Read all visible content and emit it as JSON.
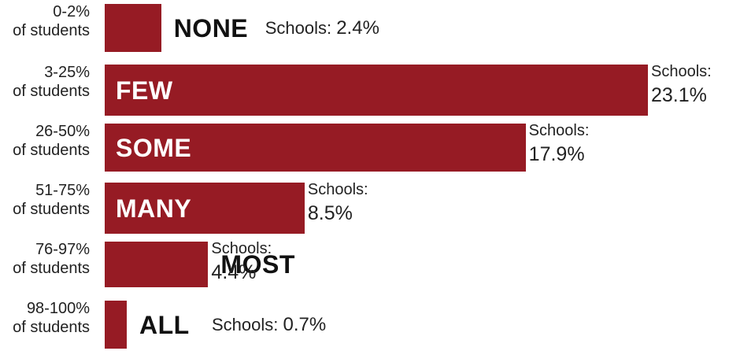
{
  "colors": {
    "bar": "#961b24"
  },
  "chart_data": {
    "type": "bar",
    "orientation": "horizontal",
    "xlim": [
      0,
      23.1
    ],
    "rows": [
      {
        "range": "0-2%",
        "unit": "of students",
        "category": "NONE",
        "key": "Schools:",
        "label": "2.4%",
        "value": 2.4
      },
      {
        "range": "3-25%",
        "unit": "of students",
        "category": "FEW",
        "key": "Schools:",
        "label": "23.1%",
        "value": 23.1
      },
      {
        "range": "26-50%",
        "unit": "of students",
        "category": "SOME",
        "key": "Schools:",
        "label": "17.9%",
        "value": 17.9
      },
      {
        "range": "51-75%",
        "unit": "of students",
        "category": "MANY",
        "key": "Schools:",
        "label": "8.5%",
        "value": 8.5
      },
      {
        "range": "76-97%",
        "unit": "of students",
        "category": "MOST",
        "key": "Schools:",
        "label": "4.4%",
        "value": 4.4
      },
      {
        "range": "98-100%",
        "unit": "of students",
        "category": "ALL",
        "key": "Schools:",
        "label": "0.7%",
        "value": 0.7
      }
    ]
  }
}
